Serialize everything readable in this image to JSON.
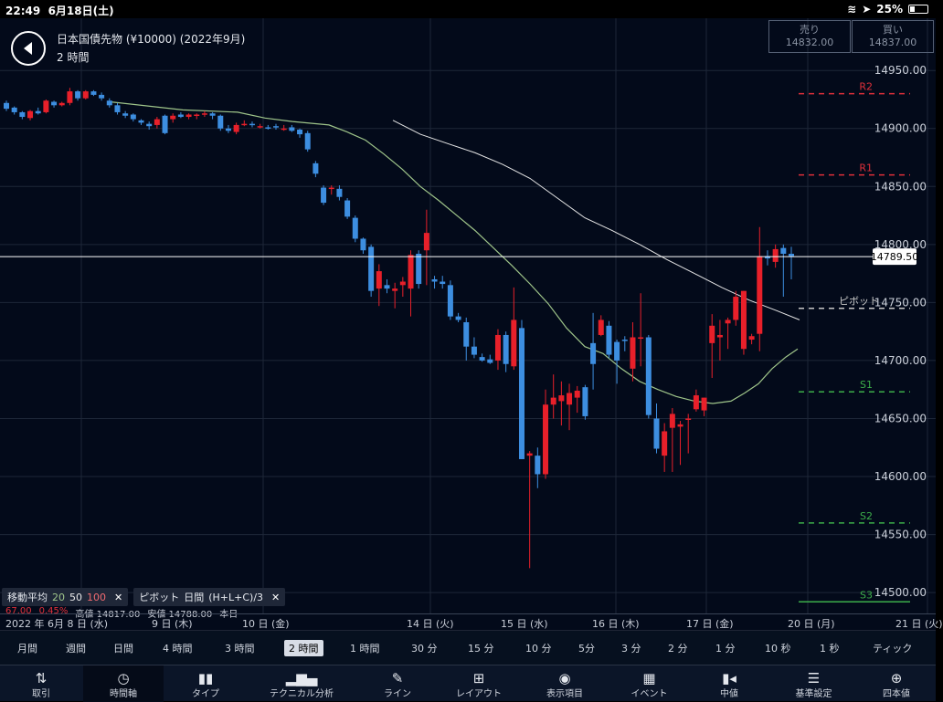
{
  "status_bar": {
    "time": "22:49",
    "date": "6月18日(土)",
    "battery": "25%"
  },
  "header": {
    "instrument": "日本国債先物 (¥10000) (2022年9月)",
    "interval": "2 時間"
  },
  "quotes": {
    "sell_label": "売り",
    "sell_price": "14832.00",
    "buy_label": "買い",
    "buy_price": "14837.00"
  },
  "indicators": {
    "ma_label": "移動平均",
    "ma_periods": [
      "20",
      "50",
      "100"
    ],
    "pivot_label": "ピボット",
    "pivot_period": "日間",
    "pivot_formula": "(H+L+C)/3",
    "close_x": "✕"
  },
  "ohlc_line": {
    "change": "67.00",
    "change_pct": "0.45%",
    "high": "高値 14817.00",
    "low": "安値 14788.00",
    "period": "本日"
  },
  "date_axis": [
    {
      "label": "2022 年 6月",
      "day": "8 日 (水)"
    },
    {
      "day": "9 日 (木)"
    },
    {
      "day": "10 日 (金)"
    },
    {
      "day": "14 日 (火)"
    },
    {
      "day": "15 日 (水)"
    },
    {
      "day": "16 日 (木)"
    },
    {
      "day": "17 日 (金)"
    },
    {
      "day": "20 日 (月)"
    },
    {
      "day": "21 日 (火)"
    }
  ],
  "timeframes": [
    "月間",
    "週間",
    "日間",
    "4 時間",
    "3 時間",
    "2 時間",
    "1 時間",
    "30 分",
    "15 分",
    "10 分",
    "5分",
    "3 分",
    "2 分",
    "1 分",
    "10 秒",
    "1 秒",
    "ティック"
  ],
  "active_timeframe": "2 時間",
  "toolbar": [
    {
      "label": "取引",
      "icon": "arrows-updown-icon"
    },
    {
      "label": "時間軸",
      "icon": "clock-icon"
    },
    {
      "label": "タイプ",
      "icon": "candlestick-icon"
    },
    {
      "label": "テクニカル分析",
      "icon": "bar-chart-icon"
    },
    {
      "label": "ライン",
      "icon": "pen-icon"
    },
    {
      "label": "レイアウト",
      "icon": "layout-icon"
    },
    {
      "label": "表示項目",
      "icon": "eye-icon"
    },
    {
      "label": "イベント",
      "icon": "calendar-icon"
    },
    {
      "label": "中値",
      "icon": "mid-price-icon"
    },
    {
      "label": "基準設定",
      "icon": "settings-icon"
    },
    {
      "label": "四本値",
      "icon": "crosshair-icon"
    }
  ],
  "colors": {
    "up": "#e8202a",
    "down": "#3d8ee0",
    "ma": "#9fc58a",
    "bg": "#030a1a",
    "grid": "#1e2738",
    "r_line": "#e0303a",
    "s_line": "#3cae4a",
    "pivot_line": "#c8c8c8"
  },
  "chart_data": {
    "type": "candlestick",
    "y_ticks": [
      14950,
      14900,
      14850,
      14800,
      14750,
      14700,
      14650,
      14600,
      14550,
      14500
    ],
    "y_tick_labels": [
      "14950.00",
      "14900.00",
      "14850.00",
      "14800.00",
      "14750.00",
      "14700.00",
      "14650.00",
      "14600.00",
      "14550.00",
      "14500.00"
    ],
    "ylim": [
      14482,
      14995
    ],
    "current_price": 14789.5,
    "current_price_label": "14789.50",
    "pivots": [
      {
        "name": "R2",
        "value": 14930
      },
      {
        "name": "R1",
        "value": 14860
      },
      {
        "name": "ピボット",
        "value": 14745
      },
      {
        "name": "S1",
        "value": 14673
      },
      {
        "name": "S2",
        "value": 14560
      },
      {
        "name": "S3",
        "value": 14492
      }
    ],
    "candles": [
      [
        14922,
        14924,
        14915,
        14917
      ],
      [
        14918,
        14919,
        14912,
        14914
      ],
      [
        14914,
        14915,
        14908,
        14910
      ],
      [
        14909,
        14916,
        14907,
        14915
      ],
      [
        14915,
        14918,
        14912,
        14913
      ],
      [
        14914,
        14925,
        14913,
        14924
      ],
      [
        14923,
        14924,
        14918,
        14920
      ],
      [
        14920,
        14923,
        14919,
        14922
      ],
      [
        14922,
        14935,
        14920,
        14932
      ],
      [
        14932,
        14933,
        14924,
        14926
      ],
      [
        14926,
        14933,
        14925,
        14932
      ],
      [
        14932,
        14933,
        14928,
        14929
      ],
      [
        14929,
        14931,
        14924,
        14926
      ],
      [
        14924,
        14926,
        14918,
        14920
      ],
      [
        14920,
        14922,
        14912,
        14914
      ],
      [
        14913,
        14915,
        14909,
        14911
      ],
      [
        14912,
        14913,
        14906,
        14908
      ],
      [
        14907,
        14908,
        14903,
        14905
      ],
      [
        14904,
        14906,
        14899,
        14902
      ],
      [
        14903,
        14910,
        14900,
        14908
      ],
      [
        14911,
        14912,
        14895,
        14896
      ],
      [
        14908,
        14913,
        14905,
        14911
      ],
      [
        14912,
        14914,
        14909,
        14910
      ],
      [
        14910,
        14913,
        14908,
        14912
      ],
      [
        14911,
        14913,
        14908,
        14912
      ],
      [
        14912,
        14915,
        14910,
        14913
      ],
      [
        14913,
        14914,
        14908,
        14911
      ],
      [
        14911,
        14912,
        14898,
        14900
      ],
      [
        14900,
        14903,
        14896,
        14898
      ],
      [
        14897,
        14905,
        14895,
        14903
      ],
      [
        14904,
        14907,
        14902,
        14904
      ],
      [
        14904,
        14906,
        14901,
        14903
      ],
      [
        14902,
        14904,
        14900,
        14902
      ],
      [
        14901,
        14903,
        14899,
        14900
      ],
      [
        14902,
        14904,
        14899,
        14901
      ],
      [
        14900,
        14903,
        14898,
        14900
      ],
      [
        14901,
        14903,
        14897,
        14898
      ],
      [
        14899,
        14900,
        14892,
        14895
      ],
      [
        14896,
        14898,
        14880,
        14882
      ],
      [
        14870,
        14872,
        14858,
        14861
      ],
      [
        14849,
        14851,
        14834,
        14836
      ],
      [
        14848,
        14851,
        14843,
        14849
      ],
      [
        14848,
        14851,
        14838,
        14841
      ],
      [
        14838,
        14840,
        14822,
        14824
      ],
      [
        14823,
        14825,
        14802,
        14805
      ],
      [
        14805,
        14806,
        14792,
        14795
      ],
      [
        14798,
        14800,
        14755,
        14760
      ],
      [
        14762,
        14783,
        14747,
        14777
      ],
      [
        14765,
        14770,
        14758,
        14762
      ],
      [
        14760,
        14767,
        14745,
        14762
      ],
      [
        14765,
        14772,
        14755,
        14768
      ],
      [
        14762,
        14795,
        14738,
        14791
      ],
      [
        14792,
        14795,
        14762,
        14766
      ],
      [
        14795,
        14830,
        14765,
        14810
      ],
      [
        14770,
        14773,
        14762,
        14768
      ],
      [
        14768,
        14773,
        14762,
        14766
      ],
      [
        14765,
        14769,
        14735,
        14738
      ],
      [
        14738,
        14741,
        14733,
        14735
      ],
      [
        14733,
        14737,
        14700,
        14712
      ],
      [
        14712,
        14720,
        14702,
        14705
      ],
      [
        14703,
        14706,
        14699,
        14700
      ],
      [
        14701,
        14705,
        14697,
        14698
      ],
      [
        14700,
        14727,
        14692,
        14722
      ],
      [
        14722,
        14725,
        14690,
        14697
      ],
      [
        14695,
        14763,
        14692,
        14735
      ],
      [
        14728,
        14735,
        14615,
        14615
      ],
      [
        14618,
        14622,
        14521,
        14620
      ],
      [
        14618,
        14625,
        14590,
        14602
      ],
      [
        14602,
        14675,
        14598,
        14662
      ],
      [
        14662,
        14688,
        14650,
        14668
      ],
      [
        14665,
        14682,
        14644,
        14670
      ],
      [
        14662,
        14680,
        14640,
        14672
      ],
      [
        14668,
        14678,
        14655,
        14674
      ],
      [
        14677,
        14679,
        14649,
        14652
      ],
      [
        14715,
        14741,
        14675,
        14697
      ],
      [
        14722,
        14739,
        14721,
        14735
      ],
      [
        14730,
        14734,
        14702,
        14705
      ],
      [
        14716,
        14718,
        14680,
        14700
      ],
      [
        14718,
        14721,
        14708,
        14717
      ],
      [
        14693,
        14733,
        14682,
        14720
      ],
      [
        14720,
        14758,
        14695,
        14720
      ],
      [
        14720,
        14722,
        14650,
        14653
      ],
      [
        14650,
        14663,
        14620,
        14624
      ],
      [
        14618,
        14646,
        14604,
        14639
      ],
      [
        14642,
        14659,
        14604,
        14654
      ],
      [
        14643,
        14648,
        14610,
        14645
      ],
      [
        14650,
        14654,
        14620,
        14650
      ],
      [
        14658,
        14675,
        14656,
        14670
      ],
      [
        14657,
        14668,
        14652,
        14668
      ],
      [
        14715,
        14740,
        14685,
        14730
      ],
      [
        14720,
        14735,
        14700,
        14722
      ],
      [
        14732,
        14737,
        14710,
        14735
      ],
      [
        14735,
        14760,
        14730,
        14755
      ],
      [
        14710,
        14760,
        14705,
        14760
      ],
      [
        14718,
        14723,
        14714,
        14721
      ],
      [
        14723,
        14815,
        14708,
        14790
      ],
      [
        14790,
        14795,
        14782,
        14788
      ],
      [
        14785,
        14800,
        14780,
        14796
      ],
      [
        14797,
        14800,
        14755,
        14792
      ],
      [
        14792,
        14798,
        14770,
        14790
      ]
    ],
    "ma20": [
      [
        120,
        14923
      ],
      [
        200,
        14916
      ],
      [
        260,
        14914
      ],
      [
        290,
        14909
      ],
      [
        320,
        14906
      ],
      [
        360,
        14903
      ],
      [
        380,
        14897
      ],
      [
        400,
        14890
      ],
      [
        420,
        14878
      ],
      [
        440,
        14865
      ],
      [
        460,
        14850
      ],
      [
        480,
        14838
      ],
      [
        500,
        14825
      ],
      [
        520,
        14812
      ],
      [
        540,
        14797
      ],
      [
        560,
        14782
      ],
      [
        580,
        14766
      ],
      [
        600,
        14749
      ],
      [
        620,
        14728
      ],
      [
        640,
        14712
      ],
      [
        660,
        14706
      ],
      [
        680,
        14693
      ],
      [
        700,
        14682
      ],
      [
        720,
        14675
      ],
      [
        740,
        14669
      ],
      [
        760,
        14665
      ],
      [
        780,
        14663
      ],
      [
        800,
        14665
      ],
      [
        815,
        14672
      ],
      [
        830,
        14680
      ],
      [
        845,
        14693
      ],
      [
        860,
        14703
      ],
      [
        873,
        14710
      ]
    ],
    "ma50": [
      [
        430,
        14907
      ],
      [
        460,
        14895
      ],
      [
        490,
        14887
      ],
      [
        520,
        14879
      ],
      [
        550,
        14869
      ],
      [
        580,
        14857
      ],
      [
        610,
        14840
      ],
      [
        640,
        14823
      ],
      [
        670,
        14812
      ],
      [
        700,
        14800
      ],
      [
        730,
        14787
      ],
      [
        760,
        14775
      ],
      [
        790,
        14763
      ],
      [
        820,
        14752
      ],
      [
        850,
        14743
      ],
      [
        875,
        14735
      ]
    ]
  }
}
